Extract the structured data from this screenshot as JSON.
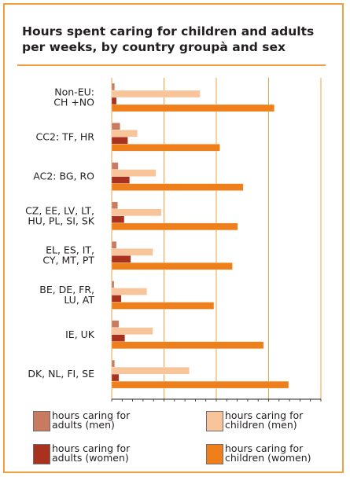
{
  "title": "Hours spent caring for children and adults per weeks, by country groupà and sex",
  "colors": {
    "frame": "#f0a040",
    "adults_men": "#c97b60",
    "children_men": "#f8c49a",
    "adults_women": "#a8321e",
    "children_women": "#ef7f1a",
    "grid": "#f0a040"
  },
  "legend": [
    {
      "label": "hours caring for adults (men)",
      "color_key": "adults_men"
    },
    {
      "label": "hours caring for children (men)",
      "color_key": "children_men"
    },
    {
      "label": "hours caring for adults (women)",
      "color_key": "adults_women"
    },
    {
      "label": "hours caring for children (women)",
      "color_key": "children_women"
    }
  ],
  "chart_data": {
    "type": "bar",
    "orientation": "horizontal",
    "title": "Hours spent caring for children and adults per weeks, by country groupà and sex",
    "categories": [
      [
        "Non-EU:",
        "CH +NO"
      ],
      [
        "CC2: TF, HR"
      ],
      [
        "AC2: BG, RO"
      ],
      [
        "CZ, EE, LV, LT,",
        "HU, PL, SI, SK"
      ],
      [
        "EL, ES, IT,",
        "CY, MT, PT"
      ],
      [
        "BE, DE, FR,",
        "LU, AT"
      ],
      [
        "IE, UK"
      ],
      [
        "DK, NL, FI, SE"
      ]
    ],
    "series": [
      {
        "name": "hours caring for adults (men)",
        "color_key": "adults_men",
        "values": [
          0.5,
          1.4,
          1.1,
          1.0,
          0.8,
          0.4,
          1.2,
          0.5
        ]
      },
      {
        "name": "hours caring for children (men)",
        "color_key": "children_men",
        "values": [
          14.8,
          4.3,
          7.4,
          8.3,
          6.9,
          5.9,
          6.9,
          13.0
        ]
      },
      {
        "name": "hours caring for adults (women)",
        "color_key": "adults_women",
        "values": [
          0.8,
          2.7,
          3.0,
          2.1,
          3.2,
          1.6,
          2.2,
          1.2
        ]
      },
      {
        "name": "hours caring for children (women)",
        "color_key": "children_women",
        "values": [
          27.2,
          18.1,
          22.0,
          21.1,
          20.2,
          17.1,
          25.4,
          29.6
        ]
      }
    ],
    "xlim": [
      0,
      35
    ],
    "x_gridlines": [
      0,
      8.75,
      17.5,
      26.25,
      35
    ],
    "grid": true,
    "legend_position": "bottom"
  }
}
